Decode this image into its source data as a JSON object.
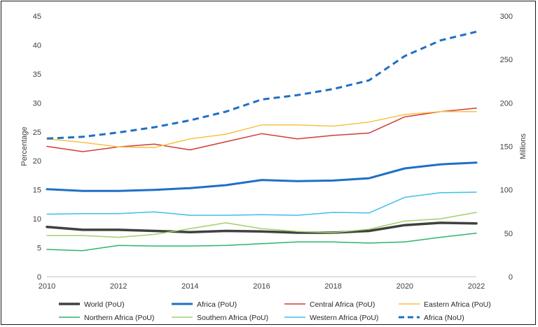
{
  "chart_data": {
    "type": "line",
    "x": [
      2010,
      2011,
      2012,
      2013,
      2014,
      2015,
      2016,
      2017,
      2018,
      2019,
      2020,
      2021,
      2022
    ],
    "x_ticks": [
      "2010",
      "2012",
      "2014",
      "2016",
      "2018",
      "2020",
      "2022"
    ],
    "ylabel": "Percentage",
    "y2label": "Millions",
    "ylim": [
      0,
      45
    ],
    "y2lim": [
      0,
      300
    ],
    "y_ticks": [
      "0",
      "5",
      "10",
      "15",
      "20",
      "25",
      "30",
      "35",
      "40",
      "45"
    ],
    "y2_ticks": [
      "0",
      "50",
      "100",
      "150",
      "200",
      "250",
      "300"
    ],
    "grid": false,
    "legend_placement": "bottom",
    "series": [
      {
        "name": "World (PoU)",
        "axis": "left",
        "color": "#404040",
        "width": 3.5,
        "dash": false,
        "values": [
          8.6,
          8.1,
          8.1,
          7.9,
          7.7,
          7.9,
          7.8,
          7.6,
          7.6,
          7.9,
          8.9,
          9.3,
          9.2
        ]
      },
      {
        "name": "Africa (PoU)",
        "axis": "left",
        "color": "#1f6fc5",
        "width": 3,
        "dash": false,
        "values": [
          15.1,
          14.8,
          14.8,
          15.0,
          15.3,
          15.8,
          16.7,
          16.5,
          16.6,
          17.0,
          18.7,
          19.4,
          19.7
        ]
      },
      {
        "name": "Central Africa (PoU)",
        "axis": "left",
        "color": "#d03b3b",
        "width": 1.5,
        "dash": false,
        "values": [
          22.5,
          21.6,
          22.4,
          22.9,
          21.9,
          23.3,
          24.7,
          23.8,
          24.4,
          24.8,
          27.6,
          28.5,
          29.1
        ]
      },
      {
        "name": "Eastern Africa (PoU)",
        "axis": "left",
        "color": "#f5c242",
        "width": 1.5,
        "dash": false,
        "values": [
          23.8,
          23.2,
          22.4,
          22.3,
          23.8,
          24.6,
          26.2,
          26.2,
          26.0,
          26.7,
          28.0,
          28.5,
          28.5
        ]
      },
      {
        "name": "Northern Africa (PoU)",
        "axis": "left",
        "color": "#2db36b",
        "width": 1.5,
        "dash": false,
        "values": [
          4.7,
          4.5,
          5.4,
          5.3,
          5.3,
          5.4,
          5.7,
          6.0,
          6.0,
          5.8,
          6.0,
          6.8,
          7.5
        ]
      },
      {
        "name": "Southern Africa (PoU)",
        "axis": "left",
        "color": "#9fd06a",
        "width": 1.5,
        "dash": false,
        "values": [
          7.1,
          7.1,
          6.8,
          7.3,
          8.3,
          9.3,
          8.3,
          7.8,
          7.6,
          8.2,
          9.6,
          10.0,
          11.1
        ]
      },
      {
        "name": "Western Africa (PoU)",
        "axis": "left",
        "color": "#3cc0e8",
        "width": 1.5,
        "dash": false,
        "values": [
          10.8,
          10.9,
          10.9,
          11.2,
          10.6,
          10.6,
          10.7,
          10.6,
          11.1,
          11.0,
          13.7,
          14.5,
          14.6
        ]
      },
      {
        "name": "Africa (NoU)",
        "axis": "right",
        "color": "#1f6fc5",
        "width": 3,
        "dash": true,
        "values": [
          159,
          161,
          166,
          172,
          180,
          190,
          204,
          209,
          216,
          226,
          254,
          272,
          282
        ]
      }
    ]
  }
}
